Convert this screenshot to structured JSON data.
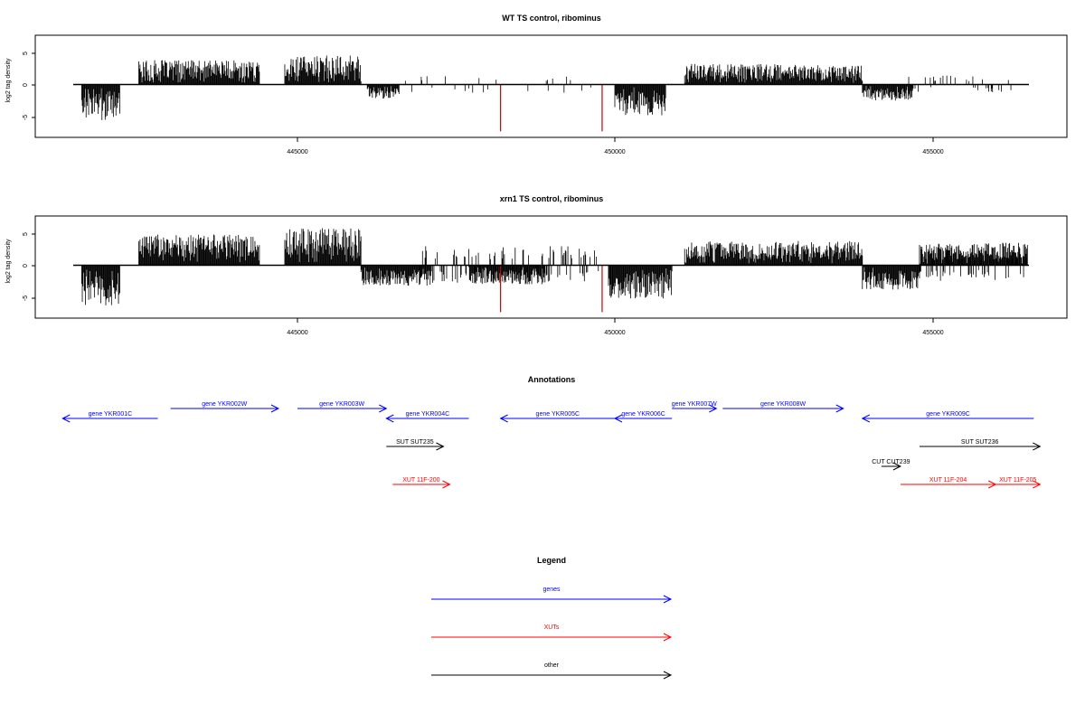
{
  "colors": {
    "signal": "#000000",
    "highlight": "#cc0000",
    "genes": "#0000ff",
    "xuts": "#ff0000",
    "other": "#000000"
  },
  "chart_data": [
    {
      "type": "bar",
      "title": "WT TS control, ribominus",
      "ylabel": "log2 tag density",
      "xlim": [
        441300,
        457400
      ],
      "ylim": [
        -7.8,
        8.0
      ],
      "xticks": [
        "445000",
        "450000",
        "455000"
      ],
      "yticks": [
        "5",
        "0",
        "-5"
      ],
      "grid": false,
      "dense_regions": [
        {
          "start": 441600,
          "end": 442200,
          "strand": "-",
          "amp": 5.6
        },
        {
          "start": 442500,
          "end": 444400,
          "strand": "+",
          "amp": 3.8
        },
        {
          "start": 444800,
          "end": 446000,
          "strand": "+",
          "amp": 4.6
        },
        {
          "start": 446100,
          "end": 446600,
          "strand": "-",
          "amp": 2.2
        },
        {
          "start": 450000,
          "end": 450800,
          "strand": "-",
          "amp": 4.8
        },
        {
          "start": 451100,
          "end": 453900,
          "strand": "+",
          "amp": 3.2
        },
        {
          "start": 453900,
          "end": 454700,
          "strand": "-",
          "amp": 2.5
        }
      ],
      "sparse_regions": [
        {
          "start": 446300,
          "end": 449800,
          "amp": 1.3,
          "density": 0.08
        },
        {
          "start": 454500,
          "end": 456500,
          "amp": 1.4,
          "density": 0.12
        }
      ],
      "highlight_bars": [
        {
          "x": 448200,
          "y": -7.3
        },
        {
          "x": 449800,
          "y": -7.3
        }
      ]
    },
    {
      "type": "bar",
      "title": "xrn1 TS control, ribominus",
      "ylabel": "log2 tag density",
      "xlim": [
        441300,
        457400
      ],
      "ylim": [
        -7.8,
        8.0
      ],
      "xticks": [
        "445000",
        "450000",
        "455000"
      ],
      "yticks": [
        "5",
        "0",
        "-5"
      ],
      "grid": false,
      "dense_regions": [
        {
          "start": 441600,
          "end": 442200,
          "strand": "-",
          "amp": 6.3
        },
        {
          "start": 442500,
          "end": 444400,
          "strand": "+",
          "amp": 4.8
        },
        {
          "start": 444800,
          "end": 446000,
          "strand": "+",
          "amp": 5.8
        },
        {
          "start": 446000,
          "end": 447100,
          "strand": "-",
          "amp": 3.2
        },
        {
          "start": 447700,
          "end": 448900,
          "strand": "-",
          "amp": 3.0
        },
        {
          "start": 449900,
          "end": 450900,
          "strand": "-",
          "amp": 5.2
        },
        {
          "start": 451100,
          "end": 453900,
          "strand": "+",
          "amp": 3.8
        },
        {
          "start": 453900,
          "end": 454800,
          "strand": "-",
          "amp": 3.8
        },
        {
          "start": 454800,
          "end": 456500,
          "strand": "+",
          "amp": 3.5
        }
      ],
      "sparse_regions": [
        {
          "start": 446900,
          "end": 449800,
          "amp": 3.0,
          "density": 0.35
        },
        {
          "start": 454800,
          "end": 456500,
          "amp": 2.5,
          "density": 0.45
        }
      ],
      "highlight_bars": [
        {
          "x": 448200,
          "y": -7.3
        },
        {
          "x": 449800,
          "y": -7.3
        }
      ]
    }
  ],
  "annotations": {
    "title": "Annotations",
    "features": [
      {
        "label": "gene YKR001C",
        "start": 441300,
        "end": 442800,
        "strand": "-",
        "track": 1,
        "class": "genes"
      },
      {
        "label": "gene YKR002W",
        "start": 443000,
        "end": 444700,
        "strand": "+",
        "track": 0,
        "class": "genes"
      },
      {
        "label": "gene YKR003W",
        "start": 445000,
        "end": 446400,
        "strand": "+",
        "track": 0,
        "class": "genes"
      },
      {
        "label": "gene YKR004C",
        "start": 446400,
        "end": 447700,
        "strand": "-",
        "track": 1,
        "class": "genes"
      },
      {
        "label": "gene YKR005C",
        "start": 448200,
        "end": 450000,
        "strand": "-",
        "track": 1,
        "class": "genes"
      },
      {
        "label": "gene YKR006C",
        "start": 450000,
        "end": 450900,
        "strand": "-",
        "track": 1,
        "class": "genes"
      },
      {
        "label": "gene YKR007W",
        "start": 450900,
        "end": 451600,
        "strand": "+",
        "track": 0,
        "class": "genes"
      },
      {
        "label": "gene YKR008W",
        "start": 451700,
        "end": 453600,
        "strand": "+",
        "track": 0,
        "class": "genes"
      },
      {
        "label": "gene YKR009C",
        "start": 453900,
        "end": 456600,
        "strand": "-",
        "track": 1,
        "class": "genes"
      },
      {
        "label": "SUT SUT235",
        "start": 446400,
        "end": 447300,
        "strand": "+",
        "track": 2,
        "class": "other"
      },
      {
        "label": "SUT SUT236",
        "start": 454800,
        "end": 456700,
        "strand": "+",
        "track": 2,
        "class": "other"
      },
      {
        "label": "CUT CUT239",
        "start": 454200,
        "end": 454500,
        "strand": "+",
        "track": 3,
        "class": "other"
      },
      {
        "label": "XUT 11F-200",
        "start": 446500,
        "end": 447400,
        "strand": "+",
        "track": 4,
        "class": "xuts"
      },
      {
        "label": "XUT 11F-204",
        "start": 454500,
        "end": 456000,
        "strand": "+",
        "track": 4,
        "class": "xuts"
      },
      {
        "label": "XUT 11F-205",
        "start": 456000,
        "end": 456700,
        "strand": "+",
        "track": 4,
        "class": "xuts"
      }
    ]
  },
  "legend": {
    "title": "Legend",
    "entries": [
      {
        "label": "genes",
        "class": "genes"
      },
      {
        "label": "XUTs",
        "class": "xuts"
      },
      {
        "label": "other",
        "class": "other"
      }
    ]
  }
}
